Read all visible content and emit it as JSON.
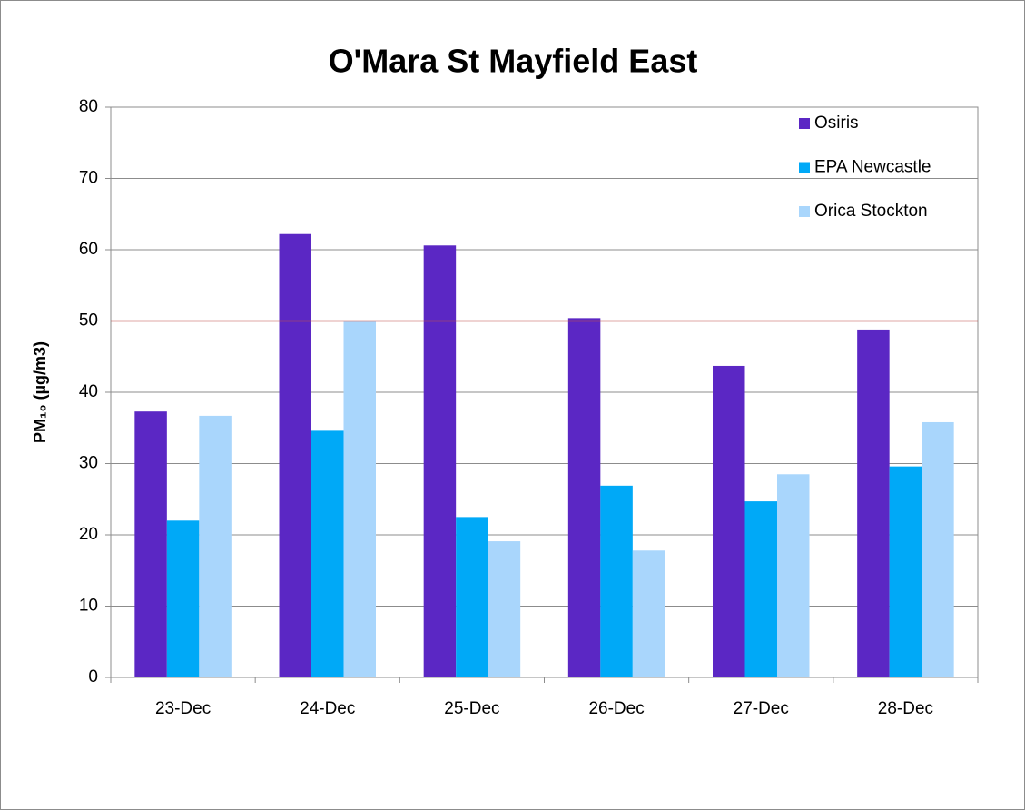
{
  "chart_data": {
    "type": "bar",
    "title": "O'Mara St Mayfield East",
    "y_label": "PM₁₀ (µg/m3)",
    "categories": [
      "23-Dec",
      "24-Dec",
      "25-Dec",
      "26-Dec",
      "27-Dec",
      "28-Dec"
    ],
    "series": [
      {
        "name": "Osiris",
        "color": "#5b27c4",
        "values": [
          37.3,
          62.2,
          60.6,
          50.4,
          43.7,
          48.8
        ]
      },
      {
        "name": "EPA Newcastle",
        "color": "#00a9f7",
        "values": [
          22.0,
          34.6,
          22.5,
          26.9,
          24.7,
          29.6
        ]
      },
      {
        "name": "Orica Stockton",
        "color": "#a9d6fc",
        "values": [
          36.7,
          49.9,
          19.1,
          17.8,
          28.5,
          35.8
        ]
      }
    ],
    "reference_line": {
      "value": 50,
      "color": "#c0504d"
    },
    "ylim": [
      0,
      80
    ],
    "yticks": [
      0,
      10,
      20,
      30,
      40,
      50,
      60,
      70,
      80
    ],
    "grid": true,
    "legend": "top-right"
  }
}
